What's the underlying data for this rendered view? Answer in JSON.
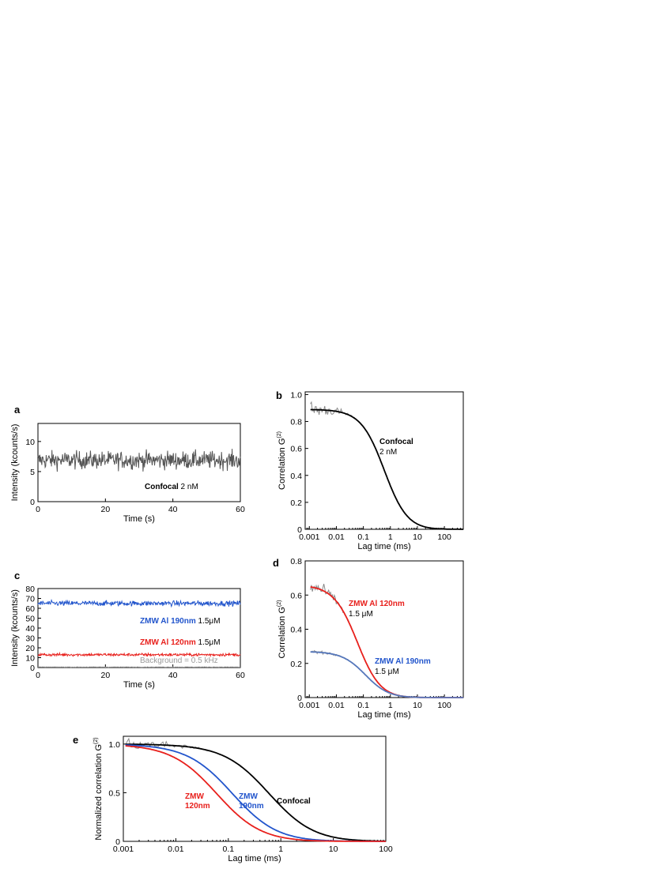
{
  "figure": {
    "panels": [
      {
        "id": "a",
        "label": "a"
      },
      {
        "id": "b",
        "label": "b"
      },
      {
        "id": "c",
        "label": "c"
      },
      {
        "id": "d",
        "label": "d"
      },
      {
        "id": "e",
        "label": "e"
      }
    ]
  },
  "chart_data": [
    {
      "panel": "a",
      "type": "line",
      "xlabel": "Time (s)",
      "ylabel": "Intensity (kcounts/s)",
      "xlim": [
        0,
        60
      ],
      "ylim": [
        0,
        13
      ],
      "xticks": [
        "0",
        "20",
        "40",
        "60"
      ],
      "yticks": [
        "0",
        "5",
        "10"
      ],
      "series": [
        {
          "name": "Confocal",
          "color": "#555555",
          "kind": "noise_trace",
          "mean": 6.9,
          "fluctuation": 1.4
        }
      ],
      "annotations": [
        {
          "bold": "Confocal",
          "text": " 2 nM"
        }
      ]
    },
    {
      "panel": "b",
      "type": "line",
      "xscale": "log",
      "xlabel": "Lag time (ms)",
      "ylabel": "Correlation G(2)",
      "xlim": [
        0.0007,
        500
      ],
      "ylim": [
        0,
        1.02
      ],
      "xticks": [
        "0.001",
        "0.01",
        "0.1",
        "1",
        "10",
        "100"
      ],
      "yticks": [
        "0",
        "0.2",
        "0.4",
        "0.6",
        "0.8",
        "1.0"
      ],
      "series": [
        {
          "name": "Confocal",
          "color": "#000000",
          "kind": "fcs_fit",
          "G0": 0.89,
          "tau_d_ms": 0.6
        },
        {
          "name": "Confocal data",
          "color": "#888888",
          "kind": "fcs_data",
          "G0": 0.89,
          "tau_d_ms": 0.6
        }
      ],
      "annotations": [
        {
          "bold": "Confocal",
          "text": "2 nM"
        }
      ]
    },
    {
      "panel": "c",
      "type": "line",
      "xlabel": "Time (s)",
      "ylabel": "Intensity (kcounts/s)",
      "xlim": [
        0,
        60
      ],
      "ylim": [
        0,
        80
      ],
      "xticks": [
        "0",
        "20",
        "40",
        "60"
      ],
      "yticks": [
        "0",
        "10",
        "20",
        "30",
        "40",
        "50",
        "60",
        "70",
        "80"
      ],
      "series": [
        {
          "name": "ZMW Al 190nm",
          "color": "#2255cc",
          "kind": "noise_trace",
          "mean": 65,
          "fluctuation": 2.5
        },
        {
          "name": "ZMW Al 120nm",
          "color": "#e8201c",
          "kind": "noise_trace",
          "mean": 13,
          "fluctuation": 1.4
        },
        {
          "name": "Background",
          "color": "#999999",
          "kind": "noise_trace",
          "mean": 0.5,
          "fluctuation": 0.2
        }
      ],
      "annotations": [
        {
          "bold": "ZMW Al 190nm",
          "text": " 1.5μM"
        },
        {
          "bold": "ZMW Al 120nm",
          "text": " 1.5μM"
        },
        {
          "bold": "",
          "text": "Background = 0.5 kHz"
        }
      ]
    },
    {
      "panel": "d",
      "type": "line",
      "xscale": "log",
      "xlabel": "Lag time (ms)",
      "ylabel": "Correlation G(2)",
      "xlim": [
        0.0007,
        500
      ],
      "ylim": [
        0,
        0.8
      ],
      "xticks": [
        "0.001",
        "0.01",
        "0.1",
        "1",
        "10",
        "100"
      ],
      "yticks": [
        "0",
        "0.2",
        "0.4",
        "0.6",
        "0.8"
      ],
      "series": [
        {
          "name": "ZMW Al 120nm",
          "color": "#e8201c",
          "kind": "fcs_fit",
          "G0": 0.66,
          "tau_d_ms": 0.06
        },
        {
          "name": "ZMW Al 120nm data",
          "color": "#888888",
          "kind": "fcs_data",
          "G0": 0.66,
          "tau_d_ms": 0.06
        },
        {
          "name": "ZMW Al 190nm",
          "color": "#5577bb",
          "kind": "fcs_fit",
          "G0": 0.27,
          "tau_d_ms": 0.12
        },
        {
          "name": "ZMW Al 190nm data",
          "color": "#999999",
          "kind": "fcs_data",
          "G0": 0.27,
          "tau_d_ms": 0.12
        }
      ],
      "annotations": [
        {
          "bold": "ZMW Al 120nm",
          "text": "1.5 μM"
        },
        {
          "bold": "ZMW Al 190nm",
          "text": "1.5 μM"
        }
      ]
    },
    {
      "panel": "e",
      "type": "line",
      "xscale": "log",
      "xlabel": "Lag time (ms)",
      "ylabel": "Normalized correlation G(2)",
      "xlim": [
        0.001,
        100
      ],
      "ylim": [
        0,
        1.08
      ],
      "xticks": [
        "0.001",
        "0.01",
        "0.1",
        "1",
        "10",
        "100"
      ],
      "yticks": [
        "0",
        "0.5",
        "1.0"
      ],
      "series": [
        {
          "name": "Confocal",
          "color": "#000000",
          "kind": "fcs_fit",
          "G0": 1.0,
          "tau_d_ms": 0.6
        },
        {
          "name": "ZMW 190nm",
          "color": "#2255cc",
          "kind": "fcs_fit",
          "G0": 1.0,
          "tau_d_ms": 0.12
        },
        {
          "name": "ZMW 120nm",
          "color": "#e8201c",
          "kind": "fcs_fit",
          "G0": 1.0,
          "tau_d_ms": 0.06
        },
        {
          "name": "data",
          "color": "#888888",
          "kind": "fcs_data",
          "G0": 1.0,
          "tau_d_ms": 0.6
        }
      ],
      "annotations": [
        {
          "bold": "ZMW",
          "text": "120nm"
        },
        {
          "bold": "ZMW",
          "text": "190nm"
        },
        {
          "bold": "Confocal",
          "text": ""
        }
      ]
    }
  ]
}
